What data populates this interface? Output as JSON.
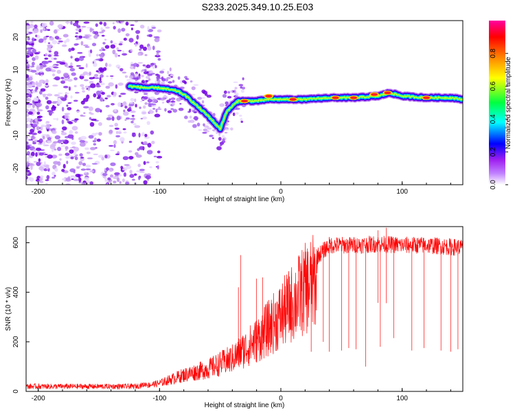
{
  "title": "S233.2025.349.10.25.E03",
  "chart_data": [
    {
      "type": "heatmap",
      "name": "spectrogram",
      "xlabel": "Height of straight line (km)",
      "ylabel": "Frequency (Hz)",
      "xlim": [
        -210,
        150
      ],
      "ylim": [
        -25,
        25
      ],
      "xticks": [
        -200,
        -100,
        0,
        100
      ],
      "yticks": [
        -20,
        -10,
        0,
        10,
        20
      ],
      "colorbar": {
        "label": "Normalized spectral amplitude",
        "range": [
          0,
          1
        ],
        "ticks": [
          0.0,
          0.2,
          0.4,
          0.6,
          0.8
        ],
        "colors": [
          "#ffffff",
          "#a020f0",
          "#0000ff",
          "#00ffff",
          "#00ff00",
          "#ffff00",
          "#ff8000",
          "#ff0000",
          "#ff00a0"
        ]
      },
      "ridge": {
        "x": [
          -125,
          -110,
          -100,
          -92,
          -85,
          -78,
          -72,
          -66,
          -60,
          -55,
          -50,
          -45,
          -40,
          -35,
          -30,
          -20,
          -10,
          0,
          20,
          40,
          60,
          80,
          90,
          100,
          120,
          140,
          150
        ],
        "y": [
          5,
          4.5,
          4.5,
          4,
          3.5,
          2,
          0,
          -2,
          -4,
          -6,
          -8,
          -3,
          -1,
          0.5,
          0.5,
          0.5,
          1,
          1,
          1,
          1.5,
          1.5,
          2,
          3,
          2,
          1.5,
          1.5,
          1
        ]
      },
      "hotspots": [
        {
          "x": -30,
          "y": 0.5
        },
        {
          "x": -10,
          "y": 2
        },
        {
          "x": 10,
          "y": 1
        },
        {
          "x": 45,
          "y": 1.5
        },
        {
          "x": 60,
          "y": 1.5
        },
        {
          "x": 77,
          "y": 2.5
        },
        {
          "x": 88,
          "y": 3
        },
        {
          "x": 120,
          "y": 1.5
        }
      ]
    },
    {
      "type": "line",
      "name": "snr",
      "xlabel": "Height of straight line (km)",
      "ylabel": "SNR (10 * v/v)",
      "xlim": [
        -210,
        150
      ],
      "ylim": [
        0,
        665
      ],
      "xticks": [
        -200,
        -100,
        0,
        100
      ],
      "yticks": [
        0,
        200,
        400,
        600
      ],
      "color": "#ff0000",
      "envelope_x": [
        -210,
        -120,
        -100,
        -80,
        -60,
        -40,
        -20,
        0,
        20,
        40,
        60,
        80,
        100,
        120,
        150
      ],
      "envelope_y": [
        20,
        20,
        40,
        80,
        110,
        160,
        250,
        370,
        500,
        590,
        590,
        595,
        590,
        590,
        580
      ],
      "spikes": [
        {
          "x": -33,
          "y": 550
        },
        {
          "x": -35,
          "y": 420
        },
        {
          "x": -20,
          "y": 455
        },
        {
          "x": -15,
          "y": 460
        },
        {
          "x": 80,
          "y": 650
        },
        {
          "x": 87,
          "y": 660
        }
      ],
      "dropouts": [
        {
          "x": 25,
          "y": 160
        },
        {
          "x": 35,
          "y": 200
        },
        {
          "x": 40,
          "y": 160
        },
        {
          "x": 50,
          "y": 165
        },
        {
          "x": 56,
          "y": 175
        },
        {
          "x": 62,
          "y": 170
        },
        {
          "x": 70,
          "y": 100
        },
        {
          "x": 82,
          "y": 180
        },
        {
          "x": 93,
          "y": 215
        },
        {
          "x": 108,
          "y": 165
        },
        {
          "x": 118,
          "y": 175
        },
        {
          "x": 132,
          "y": 165
        },
        {
          "x": 140,
          "y": 160
        },
        {
          "x": 146,
          "y": 170
        }
      ]
    }
  ]
}
